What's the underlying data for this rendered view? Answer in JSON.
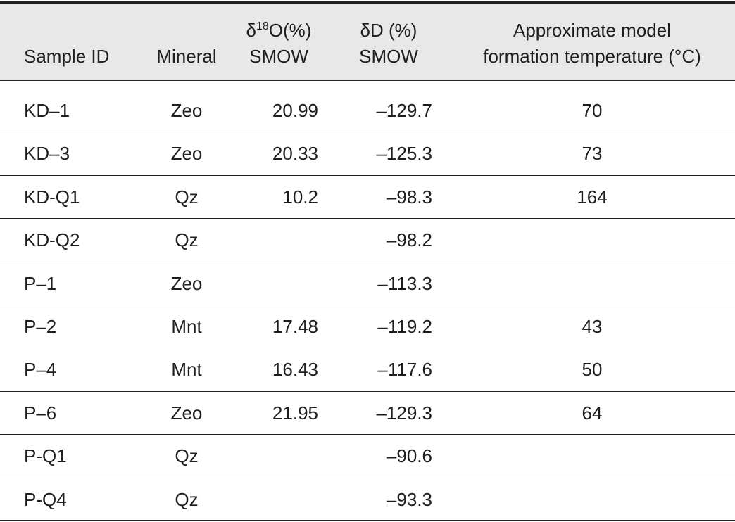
{
  "header": [
    [
      "Sample ID"
    ],
    [
      "Mineral"
    ],
    [
      {
        "delta": "δ",
        "sup": "18",
        "rest": "O(%)"
      },
      "SMOW"
    ],
    [
      "δD (%)",
      "SMOW"
    ],
    [
      "Approximate model",
      "formation temperature (°C)"
    ]
  ],
  "rows": [
    [
      "KD–1",
      "Zeo",
      20.99,
      "–129.7",
      70
    ],
    [
      "KD–3",
      "Zeo",
      20.33,
      "–125.3",
      73
    ],
    [
      "KD-Q1",
      "Qz",
      10.2,
      "–98.3",
      164
    ],
    [
      "KD-Q2",
      "Qz",
      null,
      "–98.2",
      null
    ],
    [
      "P–1",
      "Zeo",
      null,
      "–113.3",
      null
    ],
    [
      "P–2",
      "Mnt",
      17.48,
      "–119.2",
      43
    ],
    [
      "P–4",
      "Mnt",
      16.43,
      "–117.6",
      50
    ],
    [
      "P–6",
      "Zeo",
      21.95,
      "–129.3",
      64
    ],
    [
      "P-Q1",
      "Qz",
      null,
      "–90.6",
      null
    ],
    [
      "P-Q4",
      "Qz",
      null,
      "–93.3",
      null
    ]
  ]
}
